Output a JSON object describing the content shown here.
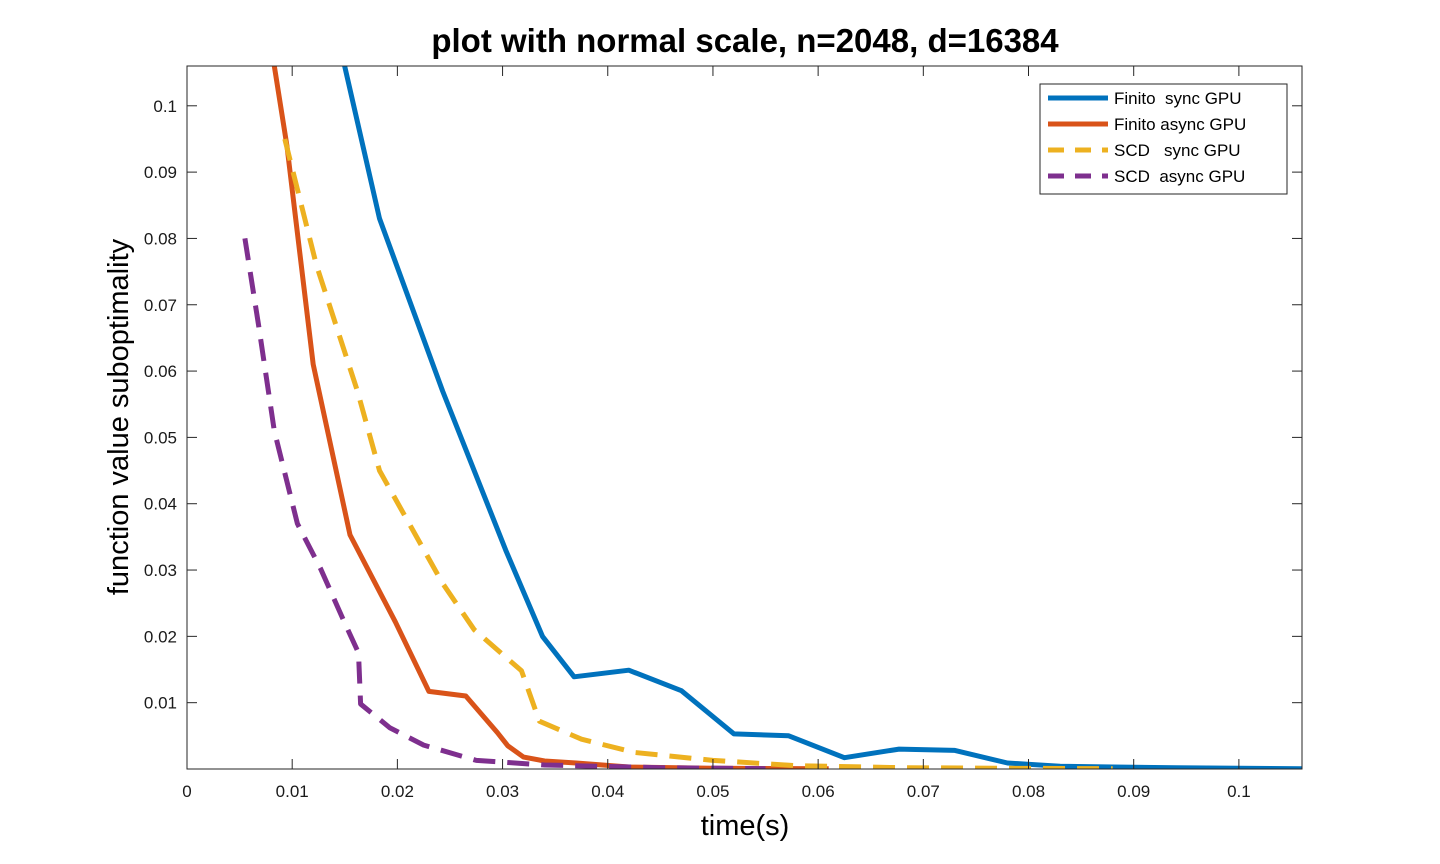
{
  "chart_data": {
    "type": "line",
    "title": "plot with normal scale, n=2048, d=16384",
    "xlabel": "time(s)",
    "ylabel": "function value suboptimality",
    "xlim": [
      0,
      0.106
    ],
    "ylim": [
      0,
      0.106
    ],
    "xticks": [
      0,
      0.01,
      0.02,
      0.03,
      0.04,
      0.05,
      0.06,
      0.07,
      0.08,
      0.09,
      0.1
    ],
    "xtick_labels": [
      "0",
      "0.01",
      "0.02",
      "0.03",
      "0.04",
      "0.05",
      "0.06",
      "0.07",
      "0.08",
      "0.09",
      "0.1"
    ],
    "yticks": [
      0.01,
      0.02,
      0.03,
      0.04,
      0.05,
      0.06,
      0.07,
      0.08,
      0.09,
      0.1
    ],
    "ytick_labels": [
      "0.01",
      "0.02",
      "0.03",
      "0.04",
      "0.05",
      "0.06",
      "0.07",
      "0.08",
      "0.09",
      "0.1"
    ],
    "grid": false,
    "legend_position": "top-right",
    "series": [
      {
        "name": "Finito  sync GPU",
        "color": "#0072BD",
        "dash": "solid",
        "x": [
          0.0147,
          0.0183,
          0.0243,
          0.0303,
          0.0338,
          0.0368,
          0.042,
          0.047,
          0.052,
          0.0572,
          0.0625,
          0.0677,
          0.073,
          0.078,
          0.083,
          0.088,
          0.094,
          0.1,
          0.106
        ],
        "y": [
          0.108,
          0.083,
          0.057,
          0.033,
          0.02,
          0.0139,
          0.0149,
          0.0118,
          0.0053,
          0.005,
          0.0017,
          0.003,
          0.0028,
          0.0009,
          0.0004,
          0.0003,
          0.0002,
          0.0001,
          5e-05
        ]
      },
      {
        "name": "Finito async GPU",
        "color": "#D95319",
        "dash": "solid",
        "x": [
          0.0081,
          0.0095,
          0.012,
          0.0155,
          0.0198,
          0.023,
          0.0265,
          0.0295,
          0.0305,
          0.032,
          0.034,
          0.037,
          0.042,
          0.05,
          0.061
        ],
        "y": [
          0.108,
          0.094,
          0.061,
          0.0353,
          0.0222,
          0.0117,
          0.011,
          0.0055,
          0.0035,
          0.0018,
          0.0012,
          0.0009,
          0.0003,
          0.0001,
          5e-05
        ]
      },
      {
        "name": "SCD   sync GPU",
        "color": "#EDB120",
        "dash": "dashed",
        "x": [
          0.0093,
          0.0123,
          0.0162,
          0.0183,
          0.0243,
          0.0273,
          0.0318,
          0.0335,
          0.0375,
          0.0425,
          0.05,
          0.058,
          0.068,
          0.078,
          0.088
        ],
        "y": [
          0.095,
          0.076,
          0.057,
          0.045,
          0.028,
          0.021,
          0.0148,
          0.0072,
          0.0045,
          0.0025,
          0.0013,
          0.0005,
          0.0002,
          0.0001,
          5e-05
        ]
      },
      {
        "name": "SCD  async GPU",
        "color": "#7E2F8E",
        "dash": "dashed",
        "x": [
          0.0055,
          0.0068,
          0.0083,
          0.0105,
          0.0127,
          0.015,
          0.0163,
          0.0165,
          0.0193,
          0.0225,
          0.0275,
          0.034,
          0.045,
          0.055
        ],
        "y": [
          0.08,
          0.067,
          0.051,
          0.037,
          0.0302,
          0.022,
          0.0175,
          0.0098,
          0.0062,
          0.0036,
          0.0013,
          0.0006,
          0.0002,
          5e-05
        ]
      }
    ]
  }
}
